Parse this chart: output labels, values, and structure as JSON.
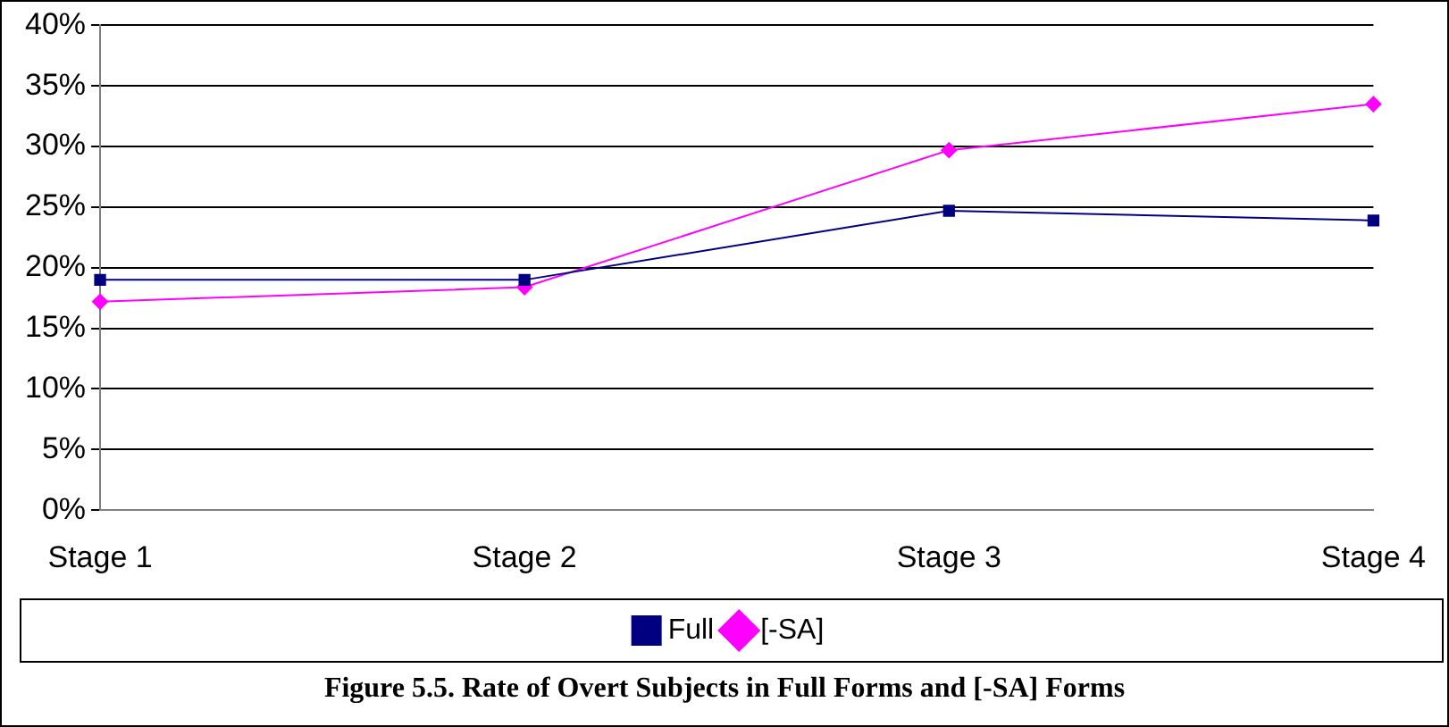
{
  "chart_data": {
    "type": "line",
    "title": "Figure 5.5.   Rate of Overt Subjects in Full Forms and [-SA] Forms",
    "categories": [
      "Stage 1",
      "Stage 2",
      "Stage 3",
      "Stage 4"
    ],
    "series": [
      {
        "name": "Full",
        "color": "#000080",
        "marker": "square",
        "values": [
          19.0,
          19.0,
          24.7,
          23.9
        ]
      },
      {
        "name": "[-SA]",
        "color": "#ff00ff",
        "marker": "diamond",
        "values": [
          17.2,
          18.4,
          29.7,
          33.5
        ]
      }
    ],
    "ylim": [
      0,
      40
    ],
    "yticks": [
      {
        "value": 0,
        "label": "0%"
      },
      {
        "value": 5,
        "label": "5%"
      },
      {
        "value": 10,
        "label": "10%"
      },
      {
        "value": 15,
        "label": "15%"
      },
      {
        "value": 20,
        "label": "20%"
      },
      {
        "value": 25,
        "label": "25%"
      },
      {
        "value": 30,
        "label": "30%"
      },
      {
        "value": 35,
        "label": "35%"
      },
      {
        "value": 40,
        "label": "40%"
      }
    ],
    "grid": "y",
    "legend": "bottom",
    "line_style": "solid"
  }
}
